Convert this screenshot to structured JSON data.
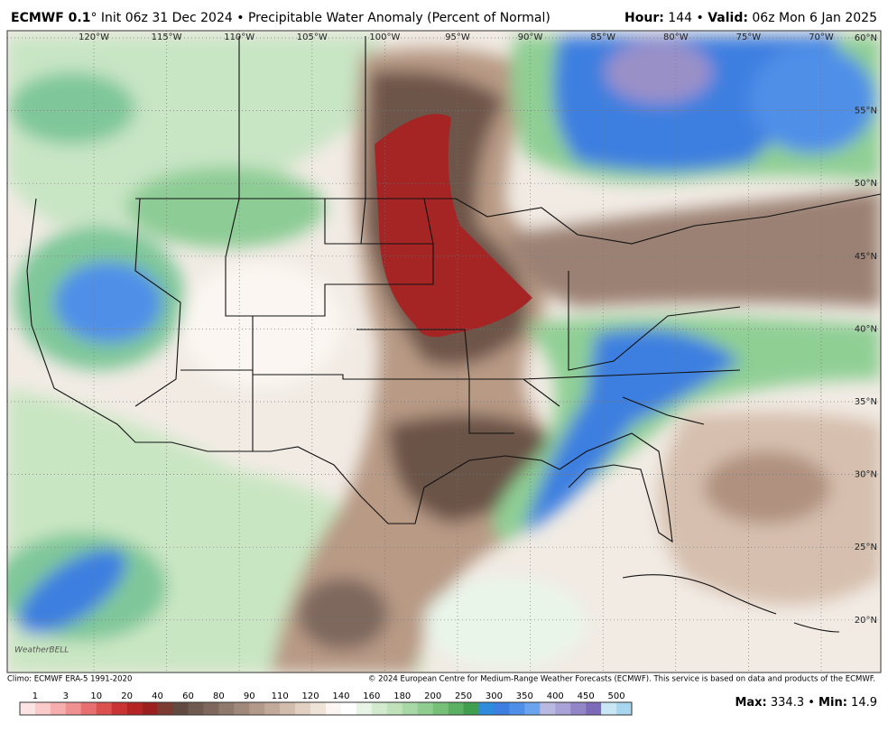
{
  "header": {
    "model": "ECMWF 0.1",
    "description": "° Init 06z 31 Dec 2024 • Precipitable Water Anomaly (Percent of Normal)",
    "hour_label": "Hour:",
    "hour": "144",
    "valid_label": "Valid:",
    "valid": "06z Mon 6 Jan 2025",
    "separator": "•"
  },
  "map": {
    "longitudes": [
      "120°W",
      "115°W",
      "110°W",
      "105°W",
      "100°W",
      "95°W",
      "90°W",
      "85°W",
      "80°W",
      "75°W",
      "70°W"
    ],
    "latitudes": [
      "60°N",
      "55°N",
      "50°N",
      "45°N",
      "40°N",
      "35°N",
      "30°N",
      "25°N",
      "20°N"
    ],
    "logo": "WeatherBELL"
  },
  "footer": {
    "climo": "Climo: ECMWF ERA-5 1991-2020",
    "copyright": "© 2024 European Centre for Medium-Range Weather Forecasts (ECMWF). This service is based on data and products of the ECMWF."
  },
  "colorbar": {
    "labels": [
      "1",
      "3",
      "10",
      "20",
      "40",
      "60",
      "80",
      "90",
      "110",
      "120",
      "140",
      "160",
      "180",
      "200",
      "250",
      "300",
      "350",
      "400",
      "450",
      "500"
    ],
    "colors": [
      "#fde4e4",
      "#fbcaca",
      "#f6adad",
      "#f19090",
      "#e86f6f",
      "#dd5050",
      "#c93333",
      "#b52424",
      "#9c1f1f",
      "#7b3a32",
      "#604a42",
      "#6e5a50",
      "#7e685d",
      "#8f796c",
      "#a0897b",
      "#b2998a",
      "#c2aa9b",
      "#d2bcad",
      "#e2d0c3",
      "#efe3d8",
      "#fbf6f1",
      "#ffffff",
      "#e8f4e6",
      "#d2ebcf",
      "#bfe2bb",
      "#a8d8a5",
      "#90cd90",
      "#76c07a",
      "#5bb064",
      "#3f9e50",
      "#2f8bdc",
      "#3d7fe0",
      "#4f8fe8",
      "#6aa3ee",
      "#b8b8e0",
      "#a8a2d6",
      "#9386c8",
      "#7d6ab8",
      "#c9e6f4",
      "#a7d6ee"
    ],
    "max_label": "Max:",
    "max": "334.3",
    "min_label": "Min:",
    "min": "14.9"
  }
}
